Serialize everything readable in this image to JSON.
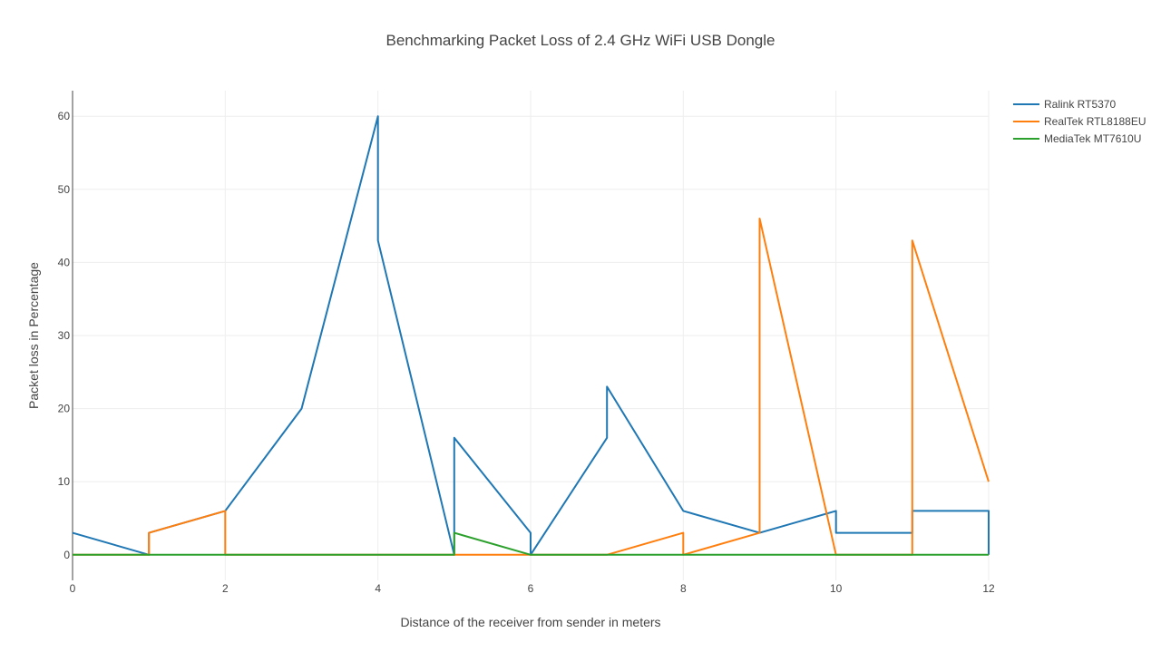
{
  "chart_data": {
    "type": "line",
    "title": "Benchmarking Packet Loss of 2.4 GHz WiFi USB Dongle",
    "xlabel": "Distance of the receiver from sender in meters",
    "ylabel": "Packet loss in Percentage",
    "xlim": [
      0,
      12
    ],
    "ylim": [
      -3.5,
      63.5
    ],
    "x_ticks": [
      0,
      2,
      4,
      6,
      8,
      10,
      12
    ],
    "y_ticks": [
      0,
      10,
      20,
      30,
      40,
      50,
      60
    ],
    "grid": true,
    "legend_position": "top-right",
    "series": [
      {
        "name": "Ralink RT5370",
        "color": "#1f77b4",
        "x": [
          0,
          1,
          1,
          2,
          3,
          4,
          4,
          5,
          5,
          6,
          6,
          7,
          7,
          8,
          9,
          10,
          10,
          11,
          11,
          12,
          12
        ],
        "y": [
          3,
          0,
          3,
          6,
          20,
          60,
          43,
          0,
          16,
          3,
          0,
          16,
          23,
          6,
          3,
          6,
          3,
          3,
          6,
          6,
          0
        ]
      },
      {
        "name": "RealTek RTL8188EU",
        "color": "#ff7f0e",
        "x": [
          0,
          1,
          1,
          2,
          2,
          3,
          4,
          5,
          6,
          7,
          8,
          8,
          9,
          9,
          10,
          11,
          11,
          12
        ],
        "y": [
          0,
          0,
          3,
          6,
          0,
          0,
          0,
          0,
          0,
          0,
          3,
          0,
          3,
          46,
          0,
          0,
          43,
          10
        ]
      },
      {
        "name": "MediaTek MT7610U",
        "color": "#2ca02c",
        "x": [
          0,
          1,
          2,
          3,
          4,
          5,
          5,
          6,
          7,
          8,
          9,
          10,
          11,
          12
        ],
        "y": [
          0,
          0,
          0,
          0,
          0,
          0,
          3,
          0,
          0,
          0,
          0,
          0,
          0,
          0
        ]
      }
    ]
  }
}
